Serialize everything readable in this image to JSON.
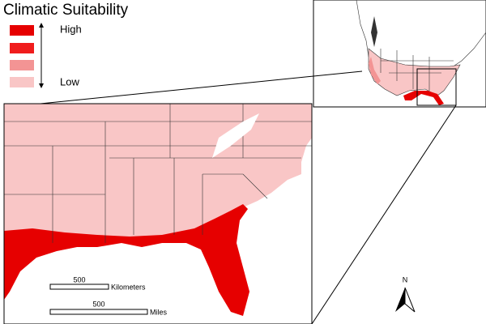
{
  "legend": {
    "title": "Climatic Suitability",
    "high": "High",
    "low": "Low"
  },
  "scale_bars": [
    {
      "value": "500",
      "unit": "Kilometers"
    },
    {
      "value": "500",
      "unit": "Miles"
    }
  ],
  "north_arrow": "N"
}
